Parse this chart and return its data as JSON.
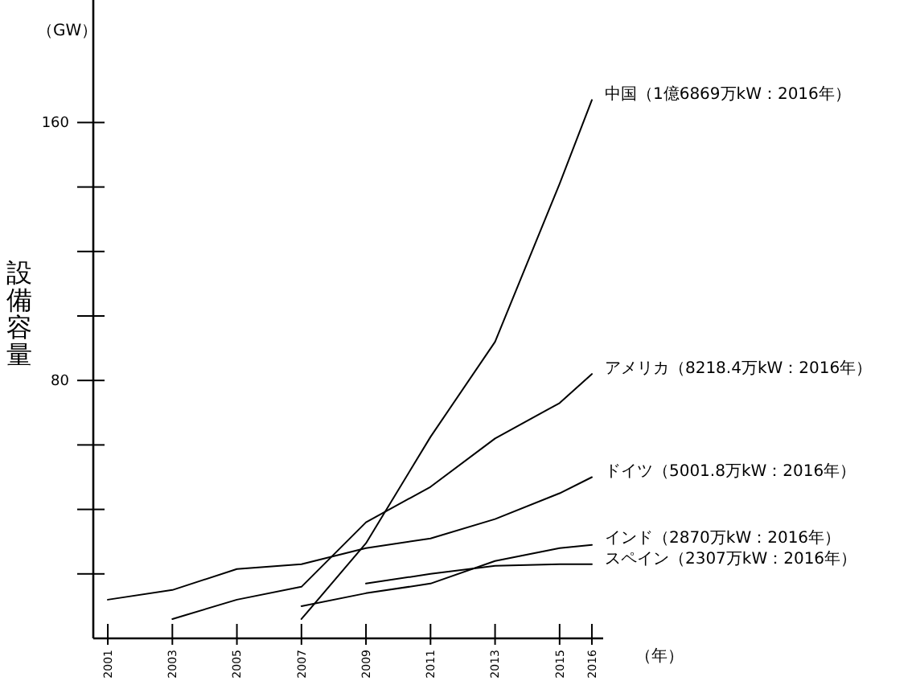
{
  "chart_data": {
    "type": "line",
    "ylabel": "設備容量",
    "xlabel": "（年）",
    "annotations": [
      "（GW）"
    ],
    "x": [
      2001,
      2003,
      2005,
      2007,
      2009,
      2011,
      2013,
      2015,
      2016
    ],
    "xlim": [
      2000.55,
      2016.35
    ],
    "xticks": [
      2001,
      2003,
      2005,
      2007,
      2009,
      2011,
      2013,
      2015,
      2016
    ],
    "ylim": [
      0,
      198
    ],
    "yticks": [
      {
        "value": 20,
        "label": null
      },
      {
        "value": 40,
        "label": null
      },
      {
        "value": 60,
        "label": null
      },
      80,
      {
        "value": 100,
        "label": null
      },
      {
        "value": 120,
        "label": null
      },
      {
        "value": 140,
        "label": null
      },
      160
    ],
    "grid": false,
    "legend": false,
    "marker": "none",
    "line_style": "solid",
    "series": [
      {
        "name": "中国（1億6869万kW：2016年）",
        "color": "#000000",
        "values": [
          null,
          null,
          null,
          6,
          29.5,
          62.5,
          92,
          141,
          167
        ]
      },
      {
        "name": "アメリカ（8218.4万kW：2016年）",
        "color": "#000000",
        "values": [
          null,
          6,
          12,
          16,
          36,
          47,
          62,
          73,
          82
        ]
      },
      {
        "name": "ドイツ（5001.8万kW：2016年）",
        "color": "#000000",
        "values": [
          12,
          15,
          21.5,
          23,
          28,
          31,
          37,
          45,
          50
        ]
      },
      {
        "name": "インド（2870万kW：2016年）",
        "color": "#000000",
        "values": [
          null,
          null,
          null,
          10,
          14,
          17,
          24,
          28,
          29
        ]
      },
      {
        "name": "スペイン（2307万kW：2016年）",
        "color": "#000000",
        "values": [
          null,
          null,
          null,
          null,
          17,
          20,
          22.5,
          23,
          23
        ]
      }
    ]
  }
}
